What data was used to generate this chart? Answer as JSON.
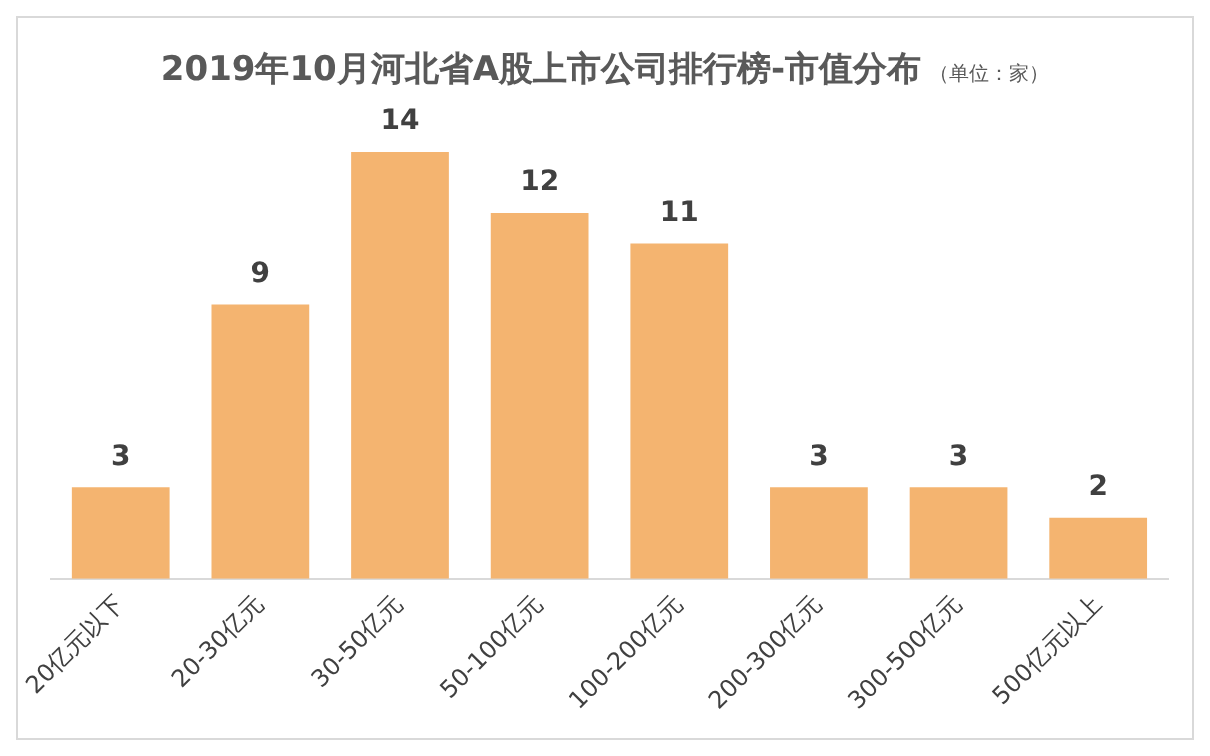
{
  "chart_data": {
    "type": "bar",
    "title": "2019年10月河北省A股上市公司排行榜-市值分布",
    "subtitle": "（单位：家）",
    "categories": [
      "20亿元以下",
      "20-30亿元",
      "30-50亿元",
      "50-100亿元",
      "100-200亿元",
      "200-300亿元",
      "300-500亿元",
      "500亿元以上"
    ],
    "values": [
      3,
      9,
      14,
      12,
      11,
      3,
      3,
      2
    ],
    "color": "#f4b470",
    "data_labels": true,
    "grid": false,
    "legend": false,
    "tick_labels": "x"
  }
}
